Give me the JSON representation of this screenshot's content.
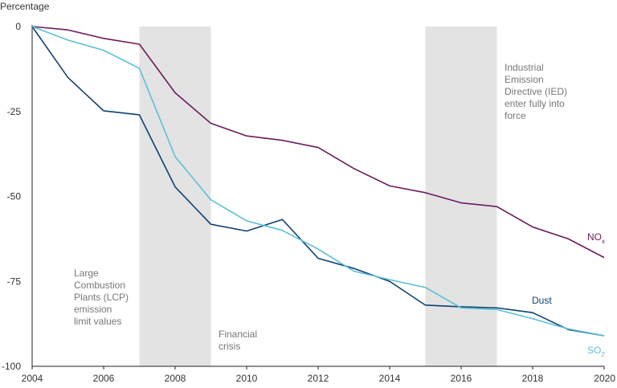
{
  "chart_data": {
    "type": "line",
    "title": "",
    "ylabel": "Percentage",
    "xlabel": "",
    "xlim": [
      2004,
      2020
    ],
    "ylim": [
      -100,
      0
    ],
    "x_ticks": [
      "2004",
      "2006",
      "2008",
      "2010",
      "2012",
      "2014",
      "2016",
      "2018",
      "2020"
    ],
    "y_ticks": [
      "0",
      "-25",
      "-50",
      "-75",
      "-100"
    ],
    "x": [
      2004,
      2005,
      2006,
      2007,
      2008,
      2009,
      2010,
      2011,
      2012,
      2013,
      2014,
      2015,
      2016,
      2017,
      2018,
      2019,
      2020
    ],
    "series": [
      {
        "name": "NO",
        "subscript": "x",
        "color": "#6b1b5e",
        "values": [
          0,
          -1,
          -3.5,
          -5.2,
          -19.5,
          -28.5,
          -32.2,
          -33.5,
          -35.6,
          -41.8,
          -46.9,
          -48.9,
          -51.9,
          -53,
          -59,
          -62.5,
          -68
        ]
      },
      {
        "name": "Dust",
        "subscript": "",
        "color": "#0e4272",
        "values": [
          0,
          -15,
          -24.8,
          -26,
          -47.2,
          -58.2,
          -60.2,
          -56.8,
          -68.2,
          -71.2,
          -75,
          -82,
          -82.5,
          -82.8,
          -84.2,
          -89.2,
          -91
        ]
      },
      {
        "name": "SO",
        "subscript": "2",
        "color": "#5cc0d6",
        "values": [
          0,
          -4,
          -7,
          -12.3,
          -38.3,
          -51,
          -57.2,
          -60,
          -65.5,
          -72,
          -74.5,
          -76.8,
          -82.8,
          -83.3,
          -86,
          -89,
          -91
        ]
      }
    ],
    "shaded_periods": [
      {
        "from": 2007,
        "to": 2009
      },
      {
        "from": 2015,
        "to": 2017
      }
    ],
    "annotations": [
      {
        "lines": [
          "Large",
          "Combustion",
          "Plants (LCP)",
          "emission",
          "limit values"
        ]
      },
      {
        "lines": [
          "Financial",
          "crisis"
        ]
      },
      {
        "lines": [
          "Industrial",
          "Emission",
          "Directive (IED)",
          "enter fully into",
          "force"
        ]
      }
    ],
    "grid": false,
    "colors": {
      "shade": "#e3e3e3",
      "axis": "#222222",
      "annotation": "#777777"
    }
  }
}
